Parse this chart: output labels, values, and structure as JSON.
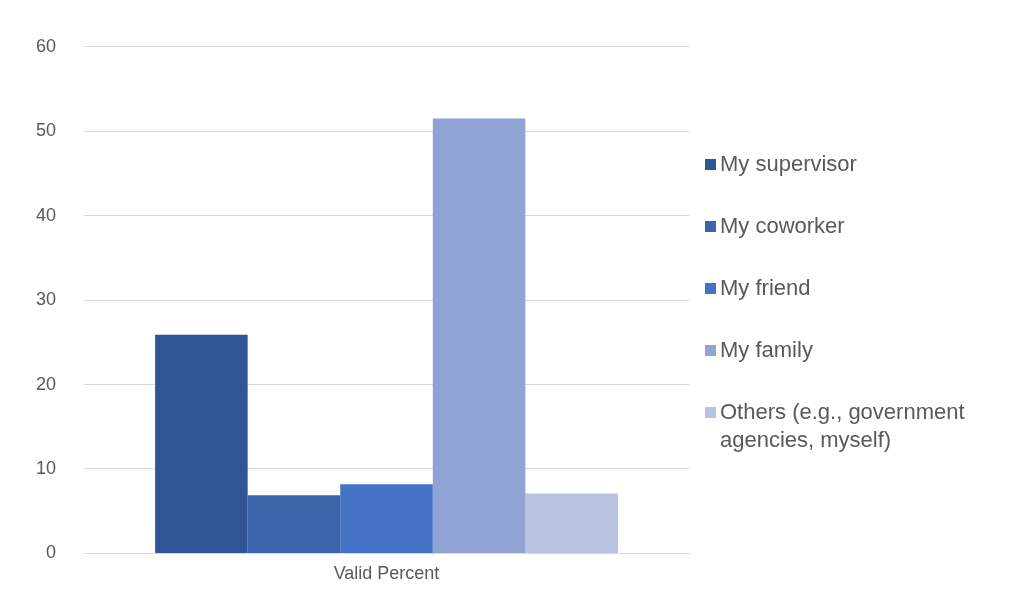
{
  "chart_data": {
    "type": "bar",
    "categories": [
      "Valid Percent"
    ],
    "series": [
      {
        "name": "My supervisor",
        "color": "#2f5597",
        "values": [
          25.9
        ]
      },
      {
        "name": "My coworker",
        "color": "#3c64ac",
        "values": [
          6.9
        ]
      },
      {
        "name": "My friend",
        "color": "#4472c4",
        "values": [
          8.2
        ]
      },
      {
        "name": "My family",
        "color": "#8fa3d4",
        "values": [
          51.5
        ]
      },
      {
        "name": "Others (e.g., government agencies, myself)",
        "color": "#b8c2e1",
        "values": [
          7.1
        ]
      }
    ],
    "ylim": [
      0,
      60
    ],
    "yticks": [
      0,
      10,
      20,
      30,
      40,
      50,
      60
    ],
    "grid": "y",
    "legend": "right"
  }
}
